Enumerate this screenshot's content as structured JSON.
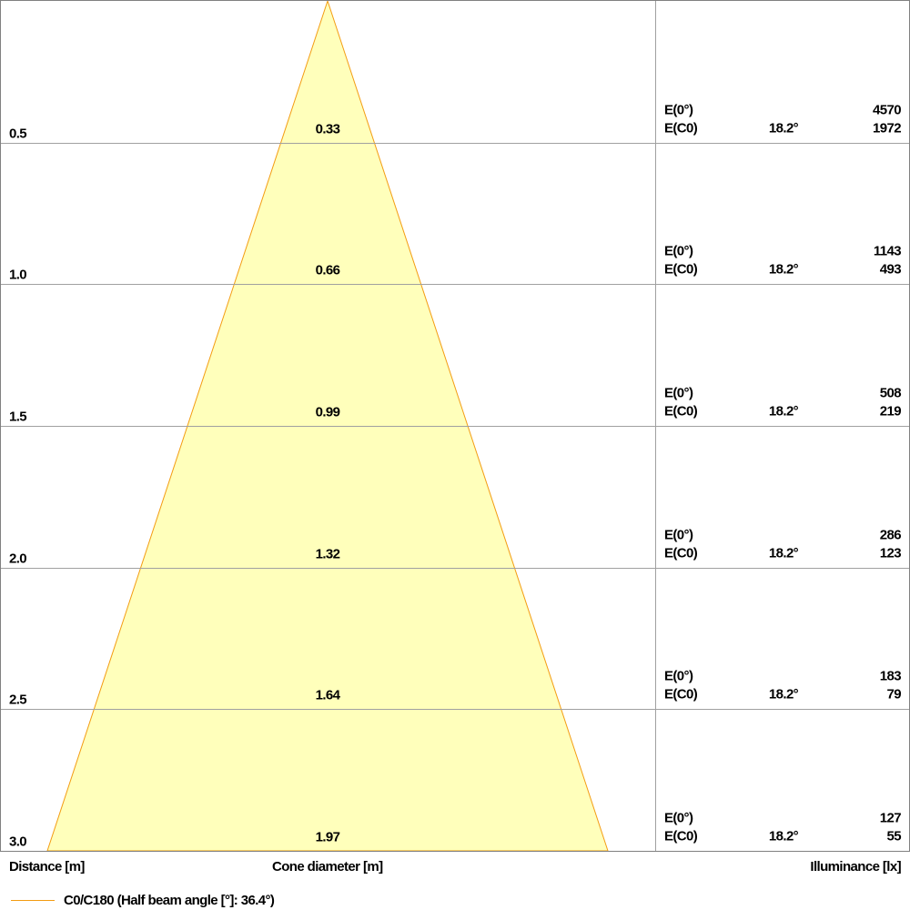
{
  "chart_data": {
    "type": "cone",
    "distance_unit_label": "Distance [m]",
    "diameter_unit_label": "Cone diameter [m]",
    "illuminance_unit_label": "Illuminance [lx]",
    "legend": "C0/C180 (Half beam angle [°]: 36.4°)",
    "half_beam_angle_deg": 36.4,
    "rows": [
      {
        "distance": "0.5",
        "diameter": "0.33",
        "e0_label": "E(0°)",
        "e0_value": "4570",
        "ec0_label": "E(C0)",
        "angle": "18.2°",
        "ec0_value": "1972"
      },
      {
        "distance": "1.0",
        "diameter": "0.66",
        "e0_label": "E(0°)",
        "e0_value": "1143",
        "ec0_label": "E(C0)",
        "angle": "18.2°",
        "ec0_value": "493"
      },
      {
        "distance": "1.5",
        "diameter": "0.99",
        "e0_label": "E(0°)",
        "e0_value": "508",
        "ec0_label": "E(C0)",
        "angle": "18.2°",
        "ec0_value": "219"
      },
      {
        "distance": "2.0",
        "diameter": "1.32",
        "e0_label": "E(0°)",
        "e0_value": "286",
        "ec0_label": "E(C0)",
        "angle": "18.2°",
        "ec0_value": "123"
      },
      {
        "distance": "2.5",
        "diameter": "1.64",
        "e0_label": "E(0°)",
        "e0_value": "183",
        "ec0_label": "E(C0)",
        "angle": "18.2°",
        "ec0_value": "79"
      },
      {
        "distance": "3.0",
        "diameter": "1.97",
        "e0_label": "E(0°)",
        "e0_value": "127",
        "ec0_label": "E(C0)",
        "angle": "18.2°",
        "ec0_value": "55"
      }
    ],
    "colors": {
      "cone_fill": "#ffffbb",
      "cone_stroke": "#f39c12",
      "grid": "#a0a0a0"
    }
  }
}
